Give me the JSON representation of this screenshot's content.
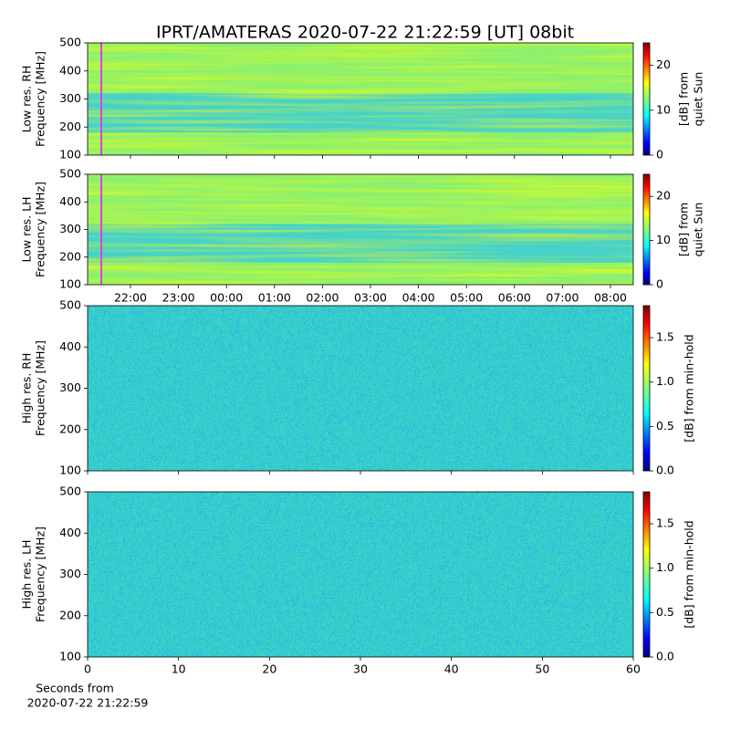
{
  "title": "IPRT/AMATERAS 2020-07-22 21:22:59 [UT]   08bit",
  "chart_data": [
    {
      "type": "heatmap",
      "ylabel": [
        "Low res. RH",
        "Frequency [MHz]"
      ],
      "ylim": [
        100,
        500
      ],
      "yticks": [
        100,
        200,
        300,
        400,
        500
      ],
      "colormap": "jet",
      "clim": [
        0,
        25
      ],
      "cticks": [
        0,
        10,
        20
      ],
      "clabel": [
        "[dB] from",
        "quiet Sun"
      ]
    },
    {
      "type": "heatmap",
      "ylabel": [
        "Low res. LH",
        "Frequency [MHz]"
      ],
      "ylim": [
        100,
        500
      ],
      "yticks": [
        100,
        200,
        300,
        400,
        500
      ],
      "xtick_labels": [
        "22:00",
        "23:00",
        "00:00",
        "01:00",
        "02:00",
        "03:00",
        "04:00",
        "05:00",
        "06:00",
        "07:00",
        "08:00"
      ],
      "colormap": "jet",
      "clim": [
        0,
        25
      ],
      "cticks": [
        0,
        10,
        20
      ],
      "clabel": [
        "[dB] from",
        "quiet Sun"
      ]
    },
    {
      "type": "heatmap",
      "ylabel": [
        "High res. RH",
        "Frequency [MHz]"
      ],
      "ylim": [
        100,
        500
      ],
      "yticks": [
        100,
        200,
        300,
        400,
        500
      ],
      "colormap": "jet",
      "clim": [
        0,
        1.86
      ],
      "cticks": [
        {
          "value": 0,
          "label": "0.0"
        },
        {
          "value": 0.5,
          "label": "0.5"
        },
        {
          "value": 1,
          "label": "1.0"
        },
        {
          "value": 1.5,
          "label": "1.5"
        }
      ],
      "clabel": [
        "[dB] from min-hold"
      ]
    },
    {
      "type": "heatmap",
      "ylabel": [
        "High res. LH",
        "Frequency [MHz]"
      ],
      "ylim": [
        100,
        500
      ],
      "yticks": [
        100,
        200,
        300,
        400,
        500
      ],
      "xlim": [
        0,
        60
      ],
      "xticks": [
        0,
        10,
        20,
        30,
        40,
        50,
        60
      ],
      "xlabel": [
        "Seconds from",
        "2020-07-22 21:22:59"
      ],
      "colormap": "jet",
      "clim": [
        0,
        1.86
      ],
      "cticks": [
        {
          "value": 0,
          "label": "0.0"
        },
        {
          "value": 0.5,
          "label": "0.5"
        },
        {
          "value": 1,
          "label": "1.0"
        },
        {
          "value": 1.5,
          "label": "1.5"
        }
      ],
      "clabel": [
        "[dB] from min-hold"
      ]
    }
  ]
}
